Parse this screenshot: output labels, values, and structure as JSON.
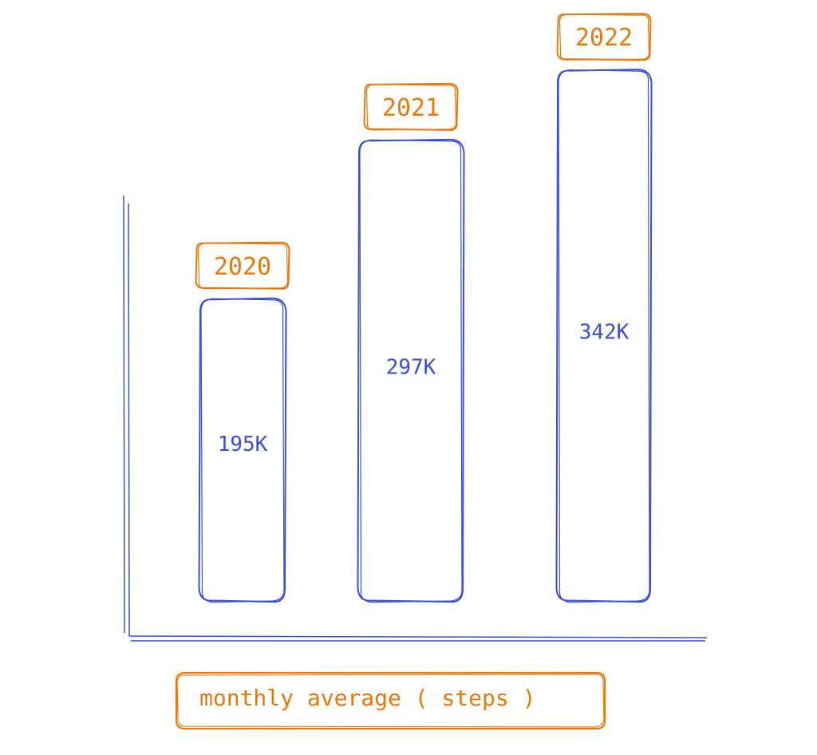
{
  "chart_data": {
    "type": "bar",
    "title": "",
    "categories": [
      "2020",
      "2021",
      "2022"
    ],
    "values": [
      195,
      297,
      342
    ],
    "value_labels": [
      "195K",
      "297K",
      "342K"
    ],
    "xlabel": "monthly average ( steps )",
    "ylabel": "",
    "unit": "K",
    "ylim": [
      0,
      360
    ],
    "grid": false,
    "style": "hand-drawn",
    "colors": {
      "bars": "#3b4fd0",
      "labels": "#e8780c"
    }
  }
}
